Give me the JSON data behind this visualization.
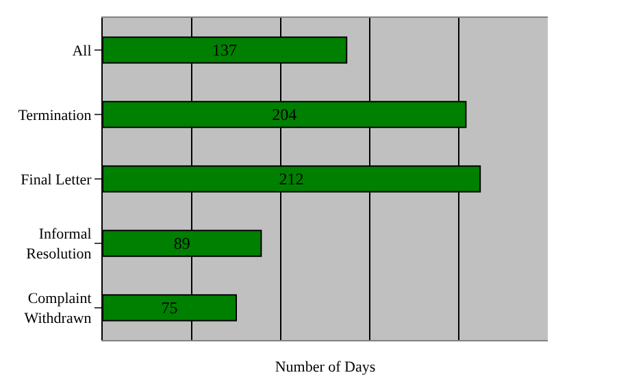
{
  "chart_data": {
    "type": "bar",
    "orientation": "horizontal",
    "xlabel": "Number of Days",
    "categories": [
      "All",
      "Termination",
      "Final Letter",
      "Informal\nResolution",
      "Complaint\nWithdrawn"
    ],
    "values": [
      137,
      204,
      212,
      89,
      75
    ],
    "color": "#008000",
    "data_labels": true,
    "xlim": [
      0,
      250
    ],
    "xticks": [
      {
        "value": 0,
        "label": null
      },
      {
        "value": 50,
        "label": null
      },
      {
        "value": 100,
        "label": null
      },
      {
        "value": 150,
        "label": null
      },
      {
        "value": 200,
        "label": null
      },
      {
        "value": 250,
        "label": null
      }
    ],
    "grid": "x",
    "tick_labels": "y",
    "legend": false
  }
}
